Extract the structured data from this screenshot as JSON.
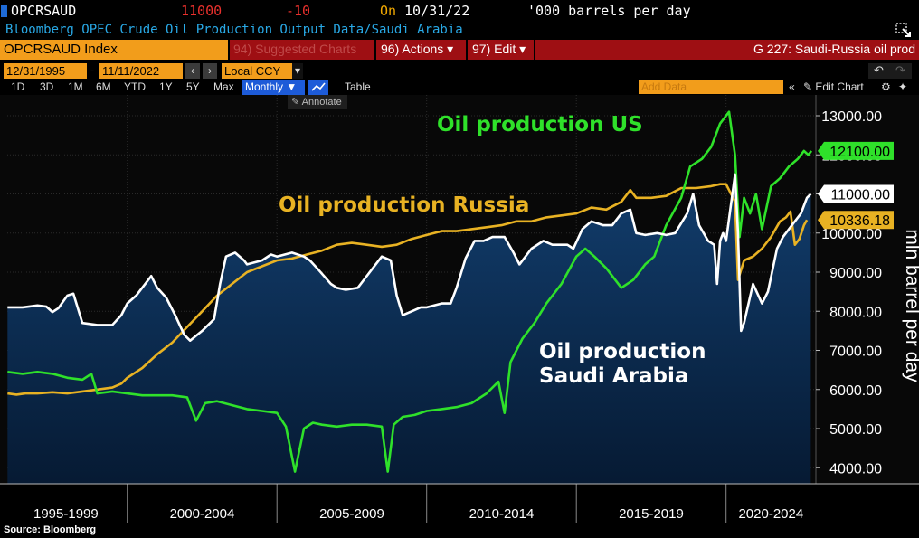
{
  "header": {
    "ticker": "OPCRSAUD",
    "last_value": "11000",
    "change": "-10",
    "on_label": "On",
    "on_date": "10/31/22",
    "unit_text": "'000 barrels per day",
    "description": "Bloomberg OPEC Crude Oil Production Output Data/Saudi Arabia"
  },
  "command_bar": {
    "index_label": "OPCRSAUD Index",
    "suggested_label": "94) Suggested Charts",
    "actions_label": "96) Actions ▾",
    "edit_label": "97) Edit ▾",
    "chart_title": "G 227: Saudi-Russia oil prod"
  },
  "date_bar": {
    "start_date": "12/31/1995",
    "end_date": "11/11/2022",
    "currency": "Local CCY"
  },
  "range_tabs": [
    "1D",
    "3D",
    "1M",
    "6M",
    "YTD",
    "1Y",
    "5Y",
    "Max"
  ],
  "toolbar": {
    "frequency": "Monthly ▼",
    "table_label": "Table",
    "add_data_placeholder": "Add Data",
    "edit_chart_label": "Edit Chart",
    "annotate_label": "Annotate"
  },
  "source": "Source: Bloomberg",
  "colors": {
    "us": "#2fe12a",
    "russia": "#e8b223",
    "saudi": "#ffffff",
    "area_top": "#123e6e",
    "area_bottom": "#061a33"
  },
  "chart_data": {
    "type": "line",
    "ylabel": "mln barrel per day",
    "ylim": [
      3800,
      13500
    ],
    "yticks": [
      4000,
      5000,
      6000,
      7000,
      8000,
      9000,
      10000,
      11000,
      12000,
      13000
    ],
    "ytick_labels": [
      "4000.00",
      "5000.00",
      "6000.00",
      "7000.00",
      "8000.00",
      "9000.00",
      "10000.00",
      "11000.00",
      "12000.00",
      "13000.00"
    ],
    "xlim": [
      1995.9,
      2023.0
    ],
    "period_labels": [
      "1995-1999",
      "2000-2004",
      "2005-2009",
      "2010-2014",
      "2015-2019",
      "2020-2024"
    ],
    "annotations": {
      "us": "Oil production US",
      "russia": "Oil production Russia",
      "saudi_line1": "Oil production",
      "saudi_line2": "Saudi Arabia"
    },
    "series": [
      {
        "key": "saudi",
        "last_label": "11000.00",
        "last_value": 11000,
        "fill": true,
        "points": [
          [
            1996.0,
            8100
          ],
          [
            1996.5,
            8100
          ],
          [
            1997.0,
            8150
          ],
          [
            1997.3,
            8120
          ],
          [
            1997.5,
            7980
          ],
          [
            1997.7,
            8080
          ],
          [
            1998.0,
            8400
          ],
          [
            1998.2,
            8450
          ],
          [
            1998.5,
            7700
          ],
          [
            1999.0,
            7650
          ],
          [
            1999.5,
            7650
          ],
          [
            1999.8,
            7900
          ],
          [
            2000.0,
            8200
          ],
          [
            2000.3,
            8400
          ],
          [
            2000.8,
            8900
          ],
          [
            2001.0,
            8600
          ],
          [
            2001.3,
            8350
          ],
          [
            2001.6,
            7900
          ],
          [
            2001.9,
            7400
          ],
          [
            2002.1,
            7250
          ],
          [
            2002.5,
            7500
          ],
          [
            2002.9,
            7800
          ],
          [
            2003.1,
            8700
          ],
          [
            2003.3,
            9400
          ],
          [
            2003.6,
            9500
          ],
          [
            2003.9,
            9300
          ],
          [
            2004.0,
            9200
          ],
          [
            2004.5,
            9300
          ],
          [
            2004.8,
            9450
          ],
          [
            2005.0,
            9400
          ],
          [
            2005.5,
            9500
          ],
          [
            2005.9,
            9400
          ],
          [
            2006.1,
            9300
          ],
          [
            2006.4,
            9050
          ],
          [
            2006.8,
            8700
          ],
          [
            2007.0,
            8600
          ],
          [
            2007.3,
            8550
          ],
          [
            2007.7,
            8600
          ],
          [
            2007.9,
            8800
          ],
          [
            2008.2,
            9100
          ],
          [
            2008.5,
            9400
          ],
          [
            2008.8,
            9300
          ],
          [
            2009.0,
            8400
          ],
          [
            2009.2,
            7900
          ],
          [
            2009.5,
            8000
          ],
          [
            2009.8,
            8100
          ],
          [
            2010.0,
            8100
          ],
          [
            2010.5,
            8200
          ],
          [
            2010.8,
            8200
          ],
          [
            2011.0,
            8600
          ],
          [
            2011.3,
            9350
          ],
          [
            2011.6,
            9800
          ],
          [
            2011.9,
            9800
          ],
          [
            2012.2,
            9900
          ],
          [
            2012.6,
            9900
          ],
          [
            2012.9,
            9500
          ],
          [
            2013.1,
            9200
          ],
          [
            2013.5,
            9600
          ],
          [
            2013.9,
            9800
          ],
          [
            2014.2,
            9700
          ],
          [
            2014.7,
            9700
          ],
          [
            2014.9,
            9600
          ],
          [
            2015.2,
            10100
          ],
          [
            2015.5,
            10300
          ],
          [
            2015.9,
            10200
          ],
          [
            2016.2,
            10200
          ],
          [
            2016.5,
            10500
          ],
          [
            2016.8,
            10600
          ],
          [
            2017.0,
            10000
          ],
          [
            2017.3,
            9950
          ],
          [
            2017.7,
            10000
          ],
          [
            2018.0,
            9950
          ],
          [
            2018.3,
            10000
          ],
          [
            2018.7,
            10500
          ],
          [
            2018.9,
            11000
          ],
          [
            2019.1,
            10200
          ],
          [
            2019.4,
            9800
          ],
          [
            2019.6,
            9700
          ],
          [
            2019.7,
            8700
          ],
          [
            2019.8,
            9800
          ],
          [
            2019.9,
            10000
          ],
          [
            2020.0,
            9800
          ],
          [
            2020.3,
            11500
          ],
          [
            2020.4,
            10000
          ],
          [
            2020.5,
            7500
          ],
          [
            2020.6,
            7700
          ],
          [
            2020.9,
            8700
          ],
          [
            2021.2,
            8200
          ],
          [
            2021.4,
            8500
          ],
          [
            2021.7,
            9600
          ],
          [
            2021.9,
            9900
          ],
          [
            2022.2,
            10200
          ],
          [
            2022.5,
            10500
          ],
          [
            2022.7,
            10900
          ],
          [
            2022.83,
            11000
          ]
        ]
      },
      {
        "key": "russia",
        "last_label": "10336.18",
        "last_value": 10336,
        "points": [
          [
            1996.0,
            5900
          ],
          [
            1996.3,
            5870
          ],
          [
            1996.6,
            5900
          ],
          [
            1997.0,
            5900
          ],
          [
            1997.5,
            5930
          ],
          [
            1998.0,
            5900
          ],
          [
            1998.5,
            5950
          ],
          [
            1999.0,
            6000
          ],
          [
            1999.5,
            6050
          ],
          [
            1999.8,
            6150
          ],
          [
            2000.0,
            6300
          ],
          [
            2000.5,
            6550
          ],
          [
            2001.0,
            6900
          ],
          [
            2001.5,
            7200
          ],
          [
            2002.0,
            7600
          ],
          [
            2002.5,
            8000
          ],
          [
            2003.0,
            8400
          ],
          [
            2003.5,
            8700
          ],
          [
            2004.0,
            9000
          ],
          [
            2004.5,
            9150
          ],
          [
            2005.0,
            9300
          ],
          [
            2005.5,
            9350
          ],
          [
            2006.0,
            9450
          ],
          [
            2006.5,
            9550
          ],
          [
            2007.0,
            9700
          ],
          [
            2007.5,
            9750
          ],
          [
            2008.0,
            9700
          ],
          [
            2008.5,
            9650
          ],
          [
            2009.0,
            9700
          ],
          [
            2009.5,
            9850
          ],
          [
            2010.0,
            9950
          ],
          [
            2010.5,
            10050
          ],
          [
            2011.0,
            10050
          ],
          [
            2011.5,
            10100
          ],
          [
            2012.0,
            10150
          ],
          [
            2012.5,
            10200
          ],
          [
            2013.0,
            10300
          ],
          [
            2013.5,
            10300
          ],
          [
            2014.0,
            10400
          ],
          [
            2014.5,
            10450
          ],
          [
            2015.0,
            10500
          ],
          [
            2015.5,
            10650
          ],
          [
            2016.0,
            10600
          ],
          [
            2016.5,
            10800
          ],
          [
            2016.8,
            11100
          ],
          [
            2017.0,
            10900
          ],
          [
            2017.5,
            10900
          ],
          [
            2018.0,
            10950
          ],
          [
            2018.5,
            11150
          ],
          [
            2019.0,
            11150
          ],
          [
            2019.5,
            11200
          ],
          [
            2019.8,
            11250
          ],
          [
            2020.0,
            11250
          ],
          [
            2020.3,
            10800
          ],
          [
            2020.4,
            8800
          ],
          [
            2020.6,
            9300
          ],
          [
            2020.9,
            9400
          ],
          [
            2021.2,
            9600
          ],
          [
            2021.5,
            9900
          ],
          [
            2021.8,
            10300
          ],
          [
            2022.0,
            10400
          ],
          [
            2022.15,
            10550
          ],
          [
            2022.3,
            9700
          ],
          [
            2022.45,
            9850
          ],
          [
            2022.6,
            10200
          ],
          [
            2022.7,
            10336
          ]
        ]
      },
      {
        "key": "us",
        "last_label": "12100.00",
        "last_value": 12100,
        "points": [
          [
            1996.0,
            6450
          ],
          [
            1996.5,
            6400
          ],
          [
            1997.0,
            6450
          ],
          [
            1997.5,
            6400
          ],
          [
            1998.0,
            6300
          ],
          [
            1998.5,
            6250
          ],
          [
            1998.8,
            6400
          ],
          [
            1999.0,
            5900
          ],
          [
            1999.5,
            5950
          ],
          [
            2000.0,
            5900
          ],
          [
            2000.5,
            5850
          ],
          [
            2001.0,
            5850
          ],
          [
            2001.5,
            5850
          ],
          [
            2002.0,
            5800
          ],
          [
            2002.3,
            5200
          ],
          [
            2002.6,
            5650
          ],
          [
            2003.0,
            5700
          ],
          [
            2003.5,
            5600
          ],
          [
            2004.0,
            5500
          ],
          [
            2004.5,
            5450
          ],
          [
            2005.0,
            5400
          ],
          [
            2005.3,
            5050
          ],
          [
            2005.6,
            3900
          ],
          [
            2005.9,
            5000
          ],
          [
            2006.2,
            5150
          ],
          [
            2006.5,
            5100
          ],
          [
            2007.0,
            5050
          ],
          [
            2007.5,
            5100
          ],
          [
            2008.0,
            5100
          ],
          [
            2008.5,
            5050
          ],
          [
            2008.7,
            3900
          ],
          [
            2008.9,
            5100
          ],
          [
            2009.2,
            5300
          ],
          [
            2009.6,
            5350
          ],
          [
            2010.0,
            5450
          ],
          [
            2010.5,
            5500
          ],
          [
            2011.0,
            5550
          ],
          [
            2011.5,
            5650
          ],
          [
            2012.0,
            5900
          ],
          [
            2012.4,
            6200
          ],
          [
            2012.6,
            5400
          ],
          [
            2012.8,
            6700
          ],
          [
            2013.2,
            7300
          ],
          [
            2013.6,
            7700
          ],
          [
            2014.0,
            8200
          ],
          [
            2014.5,
            8700
          ],
          [
            2015.0,
            9400
          ],
          [
            2015.3,
            9600
          ],
          [
            2015.6,
            9400
          ],
          [
            2016.0,
            9100
          ],
          [
            2016.5,
            8600
          ],
          [
            2016.9,
            8800
          ],
          [
            2017.3,
            9200
          ],
          [
            2017.6,
            9400
          ],
          [
            2018.0,
            10200
          ],
          [
            2018.5,
            10900
          ],
          [
            2018.8,
            11700
          ],
          [
            2019.2,
            11900
          ],
          [
            2019.5,
            12200
          ],
          [
            2019.8,
            12800
          ],
          [
            2020.1,
            13100
          ],
          [
            2020.3,
            12000
          ],
          [
            2020.45,
            9900
          ],
          [
            2020.6,
            10900
          ],
          [
            2020.8,
            10500
          ],
          [
            2021.0,
            11000
          ],
          [
            2021.2,
            10100
          ],
          [
            2021.5,
            11200
          ],
          [
            2021.8,
            11400
          ],
          [
            2022.1,
            11700
          ],
          [
            2022.4,
            11900
          ],
          [
            2022.6,
            12100
          ],
          [
            2022.75,
            12000
          ],
          [
            2022.85,
            12100
          ]
        ]
      }
    ]
  }
}
